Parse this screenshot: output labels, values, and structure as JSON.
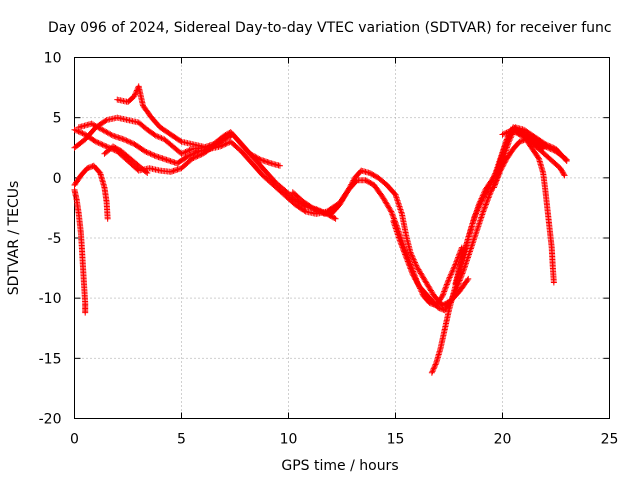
{
  "chart_data": {
    "type": "scatter",
    "title": "Day 096 of 2024, Sidereal Day-to-day VTEC variation (SDTVAR) for receiver func",
    "xlabel": "GPS time / hours",
    "ylabel": "SDTVAR / TECUs",
    "xlim": [
      0,
      25
    ],
    "ylim": [
      -20,
      10
    ],
    "xticks": [
      0,
      5,
      10,
      15,
      20,
      25
    ],
    "yticks": [
      -20,
      -15,
      -10,
      -5,
      0,
      5,
      10
    ],
    "grid": true,
    "marker": "+",
    "color": "#ff0000",
    "series": [
      {
        "name": "track-1",
        "points": [
          [
            0.0,
            -1.0
          ],
          [
            0.1,
            -1.8
          ],
          [
            0.2,
            -3.0
          ],
          [
            0.3,
            -4.6
          ],
          [
            0.35,
            -6.0
          ],
          [
            0.4,
            -7.5
          ],
          [
            0.45,
            -9.0
          ],
          [
            0.5,
            -10.4
          ],
          [
            0.5,
            -11.2
          ]
        ]
      },
      {
        "name": "track-2",
        "points": [
          [
            0.0,
            -0.6
          ],
          [
            0.3,
            0.2
          ],
          [
            0.6,
            0.8
          ],
          [
            0.9,
            1.0
          ],
          [
            1.2,
            0.4
          ],
          [
            1.4,
            -0.8
          ],
          [
            1.5,
            -2.0
          ],
          [
            1.55,
            -3.4
          ]
        ]
      },
      {
        "name": "track-3",
        "points": [
          [
            0.0,
            2.5
          ],
          [
            0.5,
            3.2
          ],
          [
            1.0,
            4.2
          ],
          [
            1.5,
            4.8
          ],
          [
            2.0,
            5.0
          ],
          [
            2.5,
            4.8
          ],
          [
            3.0,
            4.6
          ],
          [
            3.4,
            4.0
          ],
          [
            3.8,
            3.5
          ],
          [
            4.2,
            3.2
          ],
          [
            4.6,
            2.6
          ],
          [
            5.0,
            2.0
          ],
          [
            5.5,
            2.4
          ],
          [
            6.0,
            2.5
          ],
          [
            6.5,
            2.8
          ],
          [
            7.0,
            3.5
          ],
          [
            7.3,
            3.8
          ],
          [
            7.7,
            3.0
          ],
          [
            8.2,
            2.0
          ],
          [
            8.7,
            1.5
          ],
          [
            9.2,
            1.2
          ],
          [
            9.6,
            1.0
          ]
        ]
      },
      {
        "name": "track-4",
        "points": [
          [
            0.0,
            4.0
          ],
          [
            0.5,
            3.6
          ],
          [
            1.0,
            3.0
          ],
          [
            1.5,
            2.6
          ],
          [
            2.0,
            2.2
          ],
          [
            2.5,
            1.4
          ],
          [
            3.0,
            0.6
          ],
          [
            3.5,
            0.8
          ],
          [
            4.0,
            0.6
          ],
          [
            4.5,
            0.5
          ],
          [
            5.0,
            0.8
          ],
          [
            5.5,
            1.6
          ],
          [
            6.0,
            2.0
          ],
          [
            6.5,
            2.6
          ],
          [
            7.0,
            3.2
          ],
          [
            7.4,
            3.6
          ],
          [
            7.9,
            2.6
          ],
          [
            8.4,
            1.6
          ],
          [
            8.9,
            0.6
          ],
          [
            9.4,
            -0.4
          ],
          [
            9.8,
            -1.0
          ],
          [
            10.3,
            -1.8
          ],
          [
            10.8,
            -2.4
          ],
          [
            11.3,
            -2.6
          ],
          [
            11.8,
            -3.0
          ],
          [
            12.2,
            -3.4
          ]
        ]
      },
      {
        "name": "track-5",
        "points": [
          [
            0.2,
            4.2
          ],
          [
            0.8,
            4.5
          ],
          [
            1.3,
            4.0
          ],
          [
            1.8,
            3.5
          ],
          [
            2.3,
            3.2
          ],
          [
            2.8,
            2.8
          ],
          [
            3.3,
            2.2
          ],
          [
            3.8,
            1.8
          ],
          [
            4.3,
            1.5
          ],
          [
            4.8,
            1.2
          ],
          [
            5.3,
            1.8
          ],
          [
            5.8,
            2.2
          ],
          [
            6.3,
            2.4
          ],
          [
            6.8,
            2.6
          ],
          [
            7.3,
            3.0
          ],
          [
            7.8,
            2.2
          ],
          [
            8.3,
            1.2
          ],
          [
            8.8,
            0.2
          ],
          [
            9.3,
            -0.6
          ],
          [
            9.8,
            -1.4
          ],
          [
            10.3,
            -2.2
          ],
          [
            10.8,
            -2.8
          ],
          [
            11.3,
            -3.0
          ],
          [
            11.8,
            -2.8
          ],
          [
            12.3,
            -2.2
          ]
        ]
      },
      {
        "name": "track-6",
        "points": [
          [
            2.0,
            6.5
          ],
          [
            2.5,
            6.3
          ],
          [
            2.8,
            6.8
          ],
          [
            3.0,
            7.6
          ],
          [
            3.2,
            6.0
          ],
          [
            3.6,
            5.0
          ],
          [
            4.0,
            4.2
          ],
          [
            4.5,
            3.6
          ],
          [
            5.0,
            3.0
          ],
          [
            5.5,
            2.8
          ],
          [
            6.0,
            2.6
          ]
        ]
      },
      {
        "name": "track-7",
        "points": [
          [
            1.4,
            2.0
          ],
          [
            1.8,
            2.6
          ],
          [
            2.2,
            2.2
          ],
          [
            2.6,
            1.6
          ],
          [
            3.0,
            1.0
          ],
          [
            3.4,
            0.4
          ]
        ]
      },
      {
        "name": "track-8",
        "points": [
          [
            10.2,
            -1.2
          ],
          [
            10.7,
            -2.0
          ],
          [
            11.2,
            -2.6
          ],
          [
            11.7,
            -3.0
          ],
          [
            12.2,
            -2.6
          ],
          [
            12.5,
            -1.8
          ],
          [
            12.8,
            -1.0
          ],
          [
            13.1,
            0.0
          ],
          [
            13.4,
            0.6
          ],
          [
            13.8,
            0.4
          ],
          [
            14.2,
            0.0
          ],
          [
            14.6,
            -0.6
          ],
          [
            15.0,
            -1.4
          ],
          [
            15.3,
            -3.0
          ],
          [
            15.5,
            -4.8
          ],
          [
            15.7,
            -6.2
          ],
          [
            16.0,
            -7.4
          ],
          [
            16.4,
            -8.6
          ],
          [
            16.8,
            -9.8
          ],
          [
            17.2,
            -10.6
          ],
          [
            17.6,
            -10.2
          ],
          [
            18.0,
            -9.4
          ],
          [
            18.4,
            -8.4
          ]
        ]
      },
      {
        "name": "track-9",
        "points": [
          [
            12.0,
            -3.0
          ],
          [
            12.4,
            -2.2
          ],
          [
            12.8,
            -1.0
          ],
          [
            13.2,
            -0.2
          ],
          [
            13.6,
            -0.2
          ],
          [
            14.0,
            -0.6
          ],
          [
            14.4,
            -1.6
          ],
          [
            14.8,
            -2.8
          ],
          [
            15.1,
            -4.2
          ],
          [
            15.4,
            -5.8
          ],
          [
            15.7,
            -7.2
          ],
          [
            16.0,
            -8.6
          ],
          [
            16.3,
            -9.8
          ],
          [
            16.6,
            -10.4
          ],
          [
            16.9,
            -10.6
          ],
          [
            17.2,
            -9.8
          ],
          [
            17.5,
            -8.4
          ],
          [
            17.8,
            -7.2
          ],
          [
            18.1,
            -5.8
          ]
        ]
      },
      {
        "name": "track-10",
        "points": [
          [
            14.9,
            -3.6
          ],
          [
            15.2,
            -5.2
          ],
          [
            15.5,
            -6.6
          ],
          [
            15.8,
            -8.0
          ],
          [
            16.1,
            -9.0
          ],
          [
            16.4,
            -9.6
          ],
          [
            16.7,
            -10.2
          ],
          [
            17.0,
            -10.8
          ],
          [
            17.3,
            -11.0
          ],
          [
            17.6,
            -10.2
          ],
          [
            17.9,
            -9.0
          ],
          [
            18.2,
            -7.6
          ],
          [
            18.5,
            -6.0
          ],
          [
            18.8,
            -4.4
          ],
          [
            19.1,
            -2.8
          ],
          [
            19.4,
            -1.4
          ],
          [
            19.7,
            -0.2
          ],
          [
            20.0,
            1.4
          ],
          [
            20.3,
            3.0
          ],
          [
            20.6,
            4.2
          ],
          [
            21.0,
            4.0
          ],
          [
            21.5,
            3.4
          ],
          [
            22.0,
            2.8
          ],
          [
            22.5,
            2.4
          ],
          [
            23.0,
            1.4
          ]
        ]
      },
      {
        "name": "track-11",
        "points": [
          [
            16.7,
            -16.2
          ],
          [
            16.9,
            -15.4
          ],
          [
            17.1,
            -14.2
          ],
          [
            17.3,
            -12.6
          ],
          [
            17.5,
            -11.0
          ],
          [
            17.8,
            -9.0
          ],
          [
            18.1,
            -7.0
          ],
          [
            18.4,
            -5.0
          ],
          [
            18.7,
            -3.2
          ],
          [
            19.0,
            -2.0
          ],
          [
            19.3,
            -1.0
          ],
          [
            19.6,
            0.0
          ],
          [
            19.9,
            1.6
          ],
          [
            20.2,
            3.2
          ],
          [
            20.5,
            4.2
          ],
          [
            20.9,
            3.8
          ],
          [
            21.4,
            3.0
          ],
          [
            21.9,
            2.4
          ]
        ]
      },
      {
        "name": "track-12",
        "points": [
          [
            17.8,
            -8.8
          ],
          [
            18.0,
            -7.4
          ],
          [
            18.3,
            -5.6
          ],
          [
            18.6,
            -3.8
          ],
          [
            18.9,
            -2.2
          ],
          [
            19.2,
            -1.0
          ],
          [
            19.5,
            -0.2
          ],
          [
            19.8,
            0.8
          ],
          [
            20.1,
            2.6
          ],
          [
            20.4,
            4.0
          ],
          [
            20.8,
            3.6
          ],
          [
            21.2,
            3.2
          ],
          [
            21.7,
            2.4
          ],
          [
            22.2,
            1.6
          ],
          [
            22.7,
            0.8
          ],
          [
            22.9,
            0.2
          ]
        ]
      },
      {
        "name": "track-13",
        "points": [
          [
            19.6,
            -0.8
          ],
          [
            19.9,
            0.6
          ],
          [
            20.2,
            1.6
          ],
          [
            20.5,
            2.4
          ],
          [
            20.8,
            3.0
          ],
          [
            21.1,
            3.2
          ],
          [
            21.4,
            2.4
          ],
          [
            21.7,
            1.6
          ],
          [
            21.9,
            0.4
          ],
          [
            22.0,
            -1.0
          ],
          [
            22.1,
            -2.6
          ],
          [
            22.2,
            -4.2
          ],
          [
            22.3,
            -5.8
          ],
          [
            22.35,
            -7.4
          ],
          [
            22.4,
            -8.7
          ]
        ]
      },
      {
        "name": "track-14",
        "points": [
          [
            20.0,
            3.6
          ],
          [
            20.5,
            4.0
          ],
          [
            21.0,
            3.6
          ],
          [
            21.5,
            3.2
          ],
          [
            22.0,
            2.6
          ],
          [
            22.5,
            2.2
          ],
          [
            22.8,
            1.8
          ],
          [
            23.0,
            1.5
          ]
        ]
      }
    ]
  }
}
